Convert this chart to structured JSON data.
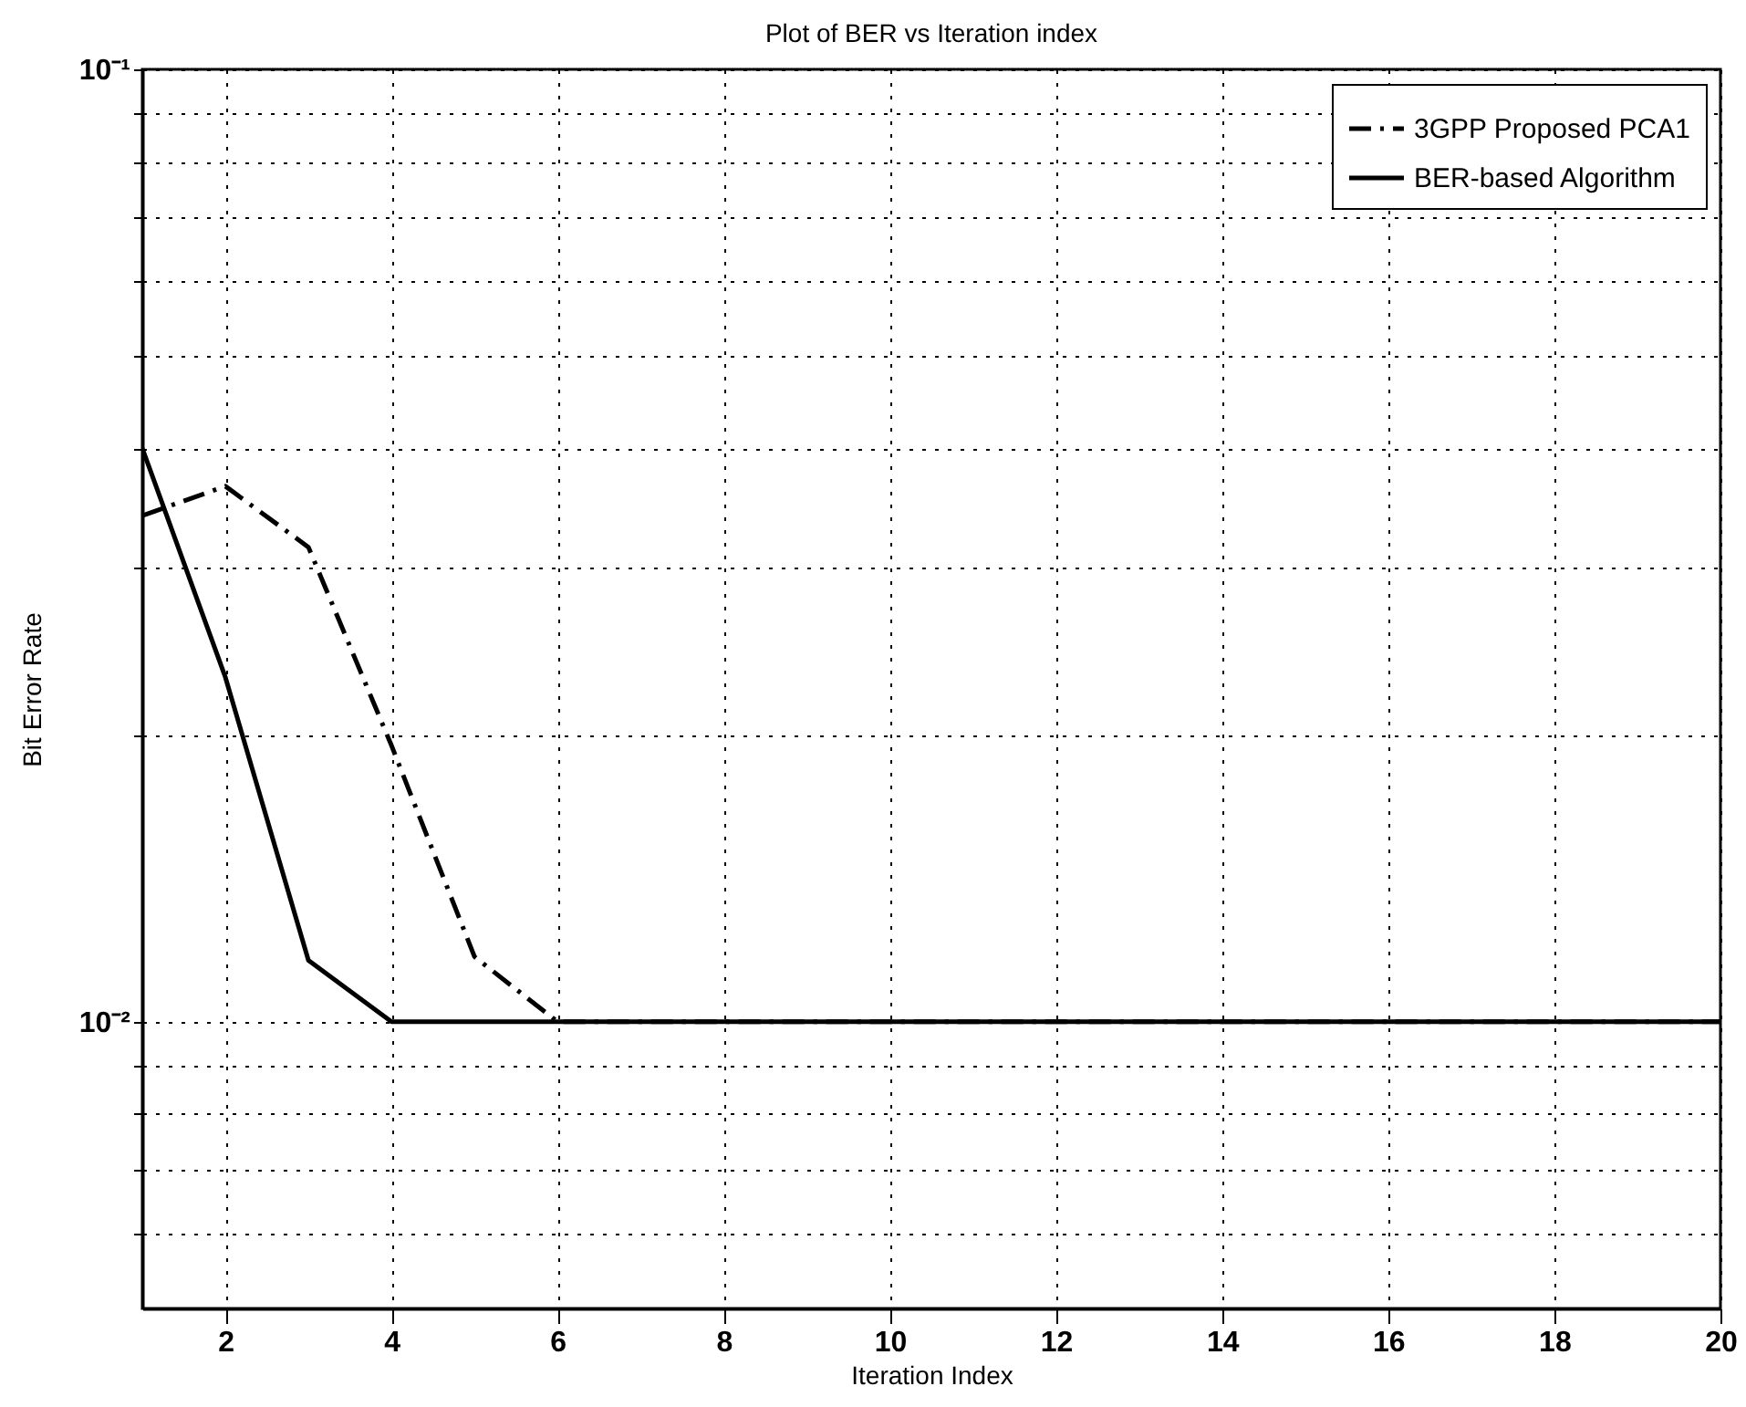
{
  "chart_data": {
    "type": "line",
    "title": "Plot of BER vs Iteration index",
    "xlabel": "Iteration Index",
    "ylabel": "Bit Error Rate",
    "x": [
      1,
      2,
      3,
      4,
      5,
      6,
      7,
      8,
      9,
      10,
      11,
      12,
      13,
      14,
      15,
      16,
      17,
      18,
      19,
      20
    ],
    "series": [
      {
        "name": "3GPP Proposed PCA1",
        "color": "#000000",
        "line_style": "dashed",
        "values": [
          0.034,
          0.0365,
          0.0315,
          0.0195,
          0.0117,
          0.01,
          0.01,
          0.01,
          0.01,
          0.01,
          0.01,
          0.01,
          0.01,
          0.01,
          0.01,
          0.01,
          0.01,
          0.01,
          0.01,
          0.01
        ]
      },
      {
        "name": "BER-based Algorithm",
        "color": "#000000",
        "line_style": "solid",
        "values": [
          0.04,
          0.023,
          0.0116,
          0.01,
          0.01,
          0.01,
          0.01,
          0.01,
          0.01,
          0.01,
          0.01,
          0.01,
          0.01,
          0.01,
          0.01,
          0.01,
          0.01,
          0.01,
          0.01,
          0.01
        ]
      }
    ],
    "log": "y",
    "xlim": [
      1,
      20
    ],
    "xticks": [
      2,
      4,
      6,
      8,
      10,
      12,
      14,
      16,
      18,
      20
    ],
    "ylim": [
      0.005,
      0.1
    ],
    "yticks": [
      {
        "value": 0.006,
        "label": null
      },
      {
        "value": 0.007,
        "label": null
      },
      {
        "value": 0.008,
        "label": null
      },
      {
        "value": 0.009,
        "label": null
      },
      {
        "value": 0.01,
        "label": "10⁻²"
      },
      {
        "value": 0.02,
        "label": null
      },
      {
        "value": 0.03,
        "label": null
      },
      {
        "value": 0.04,
        "label": null
      },
      {
        "value": 0.05,
        "label": null
      },
      {
        "value": 0.06,
        "label": null
      },
      {
        "value": 0.07,
        "label": null
      },
      {
        "value": 0.08,
        "label": null
      },
      {
        "value": 0.09,
        "label": null
      },
      {
        "value": 0.1,
        "label": "10⁻¹"
      }
    ],
    "grid": true,
    "legend": "top right"
  }
}
